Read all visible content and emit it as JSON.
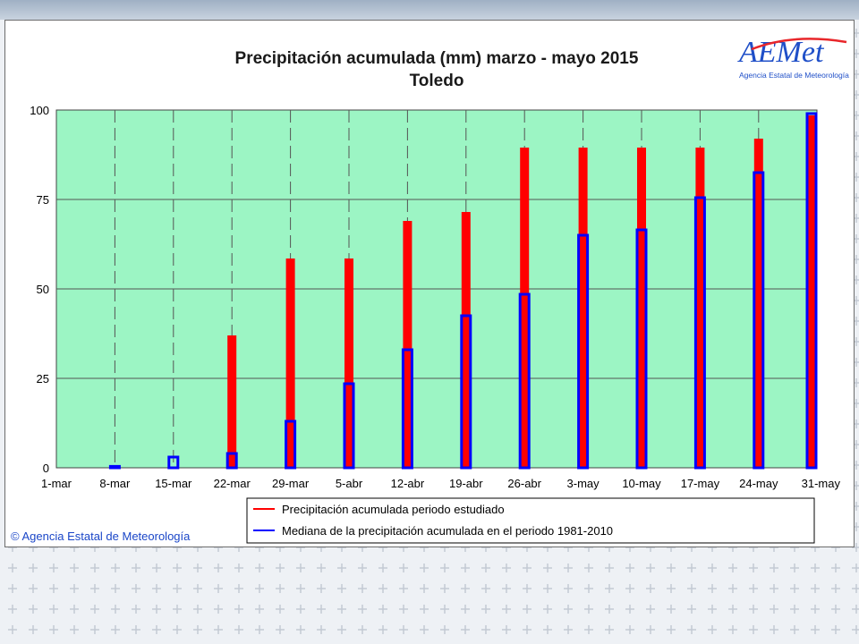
{
  "chart_data": {
    "type": "bar",
    "title": "Precipitación acumulada (mm) marzo - mayo 2015",
    "subtitle": "Toledo",
    "categories": [
      "1-mar",
      "8-mar",
      "15-mar",
      "22-mar",
      "29-mar",
      "5-abr",
      "12-abr",
      "19-abr",
      "26-abr",
      "3-may",
      "10-may",
      "17-may",
      "24-may",
      "31-may"
    ],
    "series": [
      {
        "name": "Precipitación acumulada periodo estudiado",
        "color": "#ff0000",
        "values": [
          0,
          0,
          0,
          37,
          58.5,
          58.5,
          69,
          71.5,
          89.5,
          89.5,
          89.5,
          89.5,
          92,
          98.5
        ]
      },
      {
        "name": "Mediana de la precipitación acumulada en el periodo 1981-2010",
        "color": "#0000ff",
        "values": [
          0,
          0.4,
          3,
          4,
          13,
          23.5,
          33,
          42.5,
          48.5,
          65,
          66.5,
          75.5,
          82.5,
          99
        ]
      }
    ],
    "yticks": [
      0,
      25,
      50,
      75,
      100
    ],
    "ylim": [
      0,
      100
    ],
    "grid": true,
    "plot_background": "#9cf5c4",
    "legend_position": "bottom-center"
  },
  "logo": {
    "text": "AEMet",
    "tagline": "Agencia Estatal de Meteorología",
    "colors": [
      "#1f4fc8",
      "#e8262a",
      "#f2a900"
    ]
  },
  "credit": "© Agencia Estatal de Meteorología"
}
